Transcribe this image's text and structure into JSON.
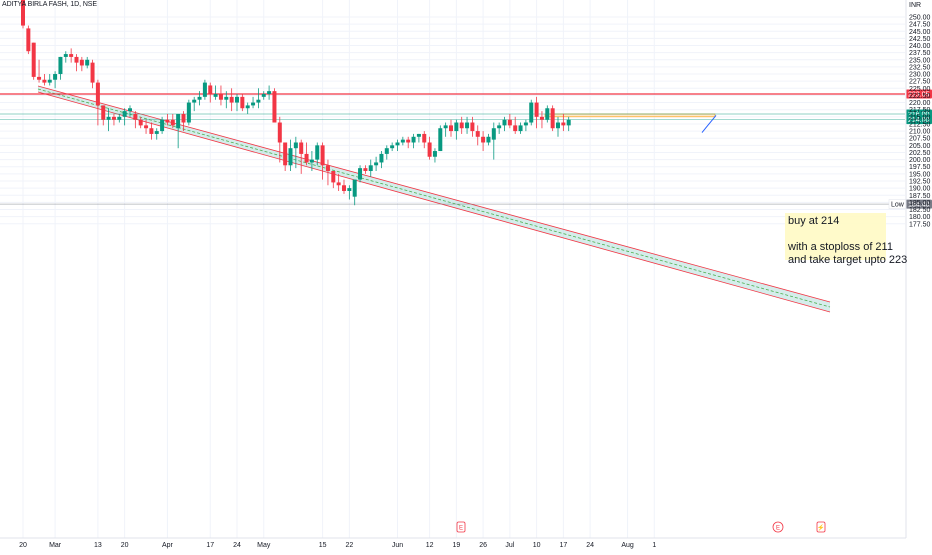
{
  "header": {
    "symbol_title": "ADITYA BIRLA FASH, 1D, NSE"
  },
  "currency": "INR",
  "chart_data": {
    "type": "candlestick",
    "title": "ADITYA BIRLA FASH, 1D, NSE",
    "currency": "INR",
    "grid": true,
    "ylim": [
      177.5,
      251
    ],
    "y_ticks": [
      "250.00",
      "247.50",
      "245.00",
      "242.50",
      "240.00",
      "237.50",
      "235.00",
      "232.50",
      "230.00",
      "227.50",
      "225.00",
      "222.50",
      "220.00",
      "217.50",
      "215.00",
      "212.50",
      "210.00",
      "207.50",
      "205.00",
      "202.50",
      "200.00",
      "197.50",
      "195.00",
      "192.50",
      "190.00",
      "187.50",
      "185.00",
      "182.50",
      "180.00",
      "177.50"
    ],
    "x_ticks": [
      {
        "label": "20",
        "i": 0
      },
      {
        "label": "Mar",
        "i": 6
      },
      {
        "label": "13",
        "i": 14
      },
      {
        "label": "20",
        "i": 19
      },
      {
        "label": "Apr",
        "i": 27
      },
      {
        "label": "17",
        "i": 35
      },
      {
        "label": "24",
        "i": 40
      },
      {
        "label": "May",
        "i": 45
      },
      {
        "label": "15",
        "i": 56
      },
      {
        "label": "22",
        "i": 61
      },
      {
        "label": "Jun",
        "i": 70
      },
      {
        "label": "12",
        "i": 76
      },
      {
        "label": "19",
        "i": 81
      },
      {
        "label": "26",
        "i": 86
      },
      {
        "label": "Jul",
        "i": 91
      },
      {
        "label": "10",
        "i": 96
      },
      {
        "label": "17",
        "i": 101
      },
      {
        "label": "24",
        "i": 106
      },
      {
        "label": "Aug",
        "i": 113
      },
      {
        "label": "1",
        "i": 118
      }
    ],
    "candles": [
      [
        256,
        257,
        246,
        247
      ],
      [
        246,
        247,
        237,
        238
      ],
      [
        241,
        241,
        228,
        229
      ],
      [
        229,
        235,
        227,
        228
      ],
      [
        228,
        230,
        226,
        227
      ],
      [
        227,
        230,
        226,
        228
      ],
      [
        228,
        231,
        225,
        230
      ],
      [
        230,
        236,
        228,
        236
      ],
      [
        236,
        238,
        234,
        237
      ],
      [
        237,
        239,
        234,
        236
      ],
      [
        236,
        237,
        231,
        234
      ],
      [
        235,
        236,
        231,
        233
      ],
      [
        233,
        236,
        232,
        235
      ],
      [
        234,
        235,
        225,
        227
      ],
      [
        227,
        228,
        212,
        219
      ],
      [
        219,
        219,
        212,
        214
      ],
      [
        214,
        218,
        210,
        215
      ],
      [
        215,
        216,
        212,
        214
      ],
      [
        214,
        216,
        213,
        215
      ],
      [
        215,
        218,
        212,
        217
      ],
      [
        217,
        219,
        215,
        218
      ],
      [
        216,
        217,
        211,
        214
      ],
      [
        214,
        215,
        211,
        212
      ],
      [
        212,
        214,
        209,
        211
      ],
      [
        211,
        213,
        207,
        209
      ],
      [
        209,
        211,
        207,
        210
      ],
      [
        210,
        215,
        209,
        214
      ],
      [
        214,
        216,
        212,
        213
      ],
      [
        214,
        216,
        211,
        212
      ],
      [
        211,
        216,
        204,
        216
      ],
      [
        216,
        217,
        210,
        213
      ],
      [
        213,
        221,
        212,
        220
      ],
      [
        220,
        222,
        217,
        221
      ],
      [
        221,
        224,
        219,
        222
      ],
      [
        222,
        228,
        221,
        227
      ],
      [
        226,
        227,
        220,
        223
      ],
      [
        222,
        226,
        221,
        223
      ],
      [
        223,
        226,
        219,
        221
      ],
      [
        221,
        224,
        218,
        222
      ],
      [
        222,
        225,
        217,
        220
      ],
      [
        220,
        223,
        217,
        222
      ],
      [
        222,
        223,
        217,
        218
      ],
      [
        218,
        220,
        216,
        219
      ],
      [
        219,
        222,
        218,
        220
      ],
      [
        220,
        225,
        218,
        221
      ],
      [
        222,
        224,
        221,
        223
      ],
      [
        223,
        226,
        221,
        224
      ],
      [
        224,
        225,
        213,
        213
      ],
      [
        213,
        215,
        199,
        206
      ],
      [
        206,
        206,
        196,
        198
      ],
      [
        198,
        207,
        196,
        204
      ],
      [
        204,
        208,
        197,
        206
      ],
      [
        206,
        207,
        195,
        202
      ],
      [
        202,
        206,
        198,
        199
      ],
      [
        199,
        203,
        196,
        200
      ],
      [
        200,
        206,
        198,
        205
      ],
      [
        205,
        206,
        193,
        198
      ],
      [
        198,
        200,
        191,
        196
      ],
      [
        196,
        196,
        190,
        192
      ],
      [
        192,
        195,
        189,
        191
      ],
      [
        191,
        193,
        188,
        189
      ],
      [
        189,
        191,
        186,
        190
      ],
      [
        187,
        193,
        184,
        193
      ],
      [
        193,
        198,
        192,
        197
      ],
      [
        197,
        198,
        195,
        196
      ],
      [
        196,
        200,
        194,
        198
      ],
      [
        198,
        201,
        196,
        199
      ],
      [
        199,
        203,
        197,
        202
      ],
      [
        202,
        205,
        200,
        204
      ],
      [
        204,
        206,
        203,
        205
      ],
      [
        205,
        207,
        203,
        206
      ],
      [
        206,
        208,
        205,
        207
      ],
      [
        207,
        208,
        204,
        206
      ],
      [
        206,
        209,
        204,
        208
      ],
      [
        208,
        209,
        206,
        209
      ],
      [
        209,
        210,
        204,
        206
      ],
      [
        206,
        208,
        200,
        201
      ],
      [
        201,
        204,
        199,
        203
      ],
      [
        203,
        212,
        203,
        211
      ],
      [
        211,
        213,
        208,
        212
      ],
      [
        212,
        214,
        208,
        210
      ],
      [
        210,
        214,
        207,
        213
      ],
      [
        213,
        215,
        209,
        211
      ],
      [
        211,
        215,
        209,
        213
      ],
      [
        213,
        215,
        208,
        210
      ],
      [
        210,
        212,
        205,
        208
      ],
      [
        208,
        210,
        203,
        206
      ],
      [
        206,
        209,
        205,
        208
      ],
      [
        207,
        213,
        200,
        211
      ],
      [
        211,
        213,
        209,
        212
      ],
      [
        212,
        215,
        210,
        214
      ],
      [
        214,
        216,
        211,
        212
      ],
      [
        212,
        215,
        209,
        210
      ],
      [
        210,
        213,
        209,
        212
      ],
      [
        212,
        214,
        210,
        213
      ],
      [
        213,
        221,
        212,
        220
      ],
      [
        220,
        222,
        211,
        215
      ],
      [
        215,
        217,
        211,
        214
      ],
      [
        214,
        219,
        213,
        218
      ],
      [
        218,
        219,
        210,
        211
      ],
      [
        211,
        215,
        208,
        213
      ],
      [
        213,
        216,
        210,
        212
      ],
      [
        212,
        215,
        210,
        214
      ]
    ],
    "horizontal_lines": [
      {
        "value": 223.0,
        "label": "223.05",
        "color": "#f23645"
      },
      {
        "value": 216.0,
        "label": "216.00",
        "color": "#089981"
      },
      {
        "value": 214.0,
        "label": "214.00",
        "color": "#089981"
      },
      {
        "value": 184.4,
        "label": "184.40",
        "prefix": "Low",
        "color": "#787b86"
      }
    ],
    "annotations": [
      {
        "kind": "text_note",
        "text": "buy at 214\n\nwith a stoploss of 211\nand take target upto 223"
      },
      {
        "kind": "event",
        "label": "E"
      },
      {
        "kind": "event",
        "label": "E"
      },
      {
        "kind": "event",
        "label": "⚡"
      }
    ],
    "up_color": "#089981",
    "down_color": "#f23645"
  }
}
